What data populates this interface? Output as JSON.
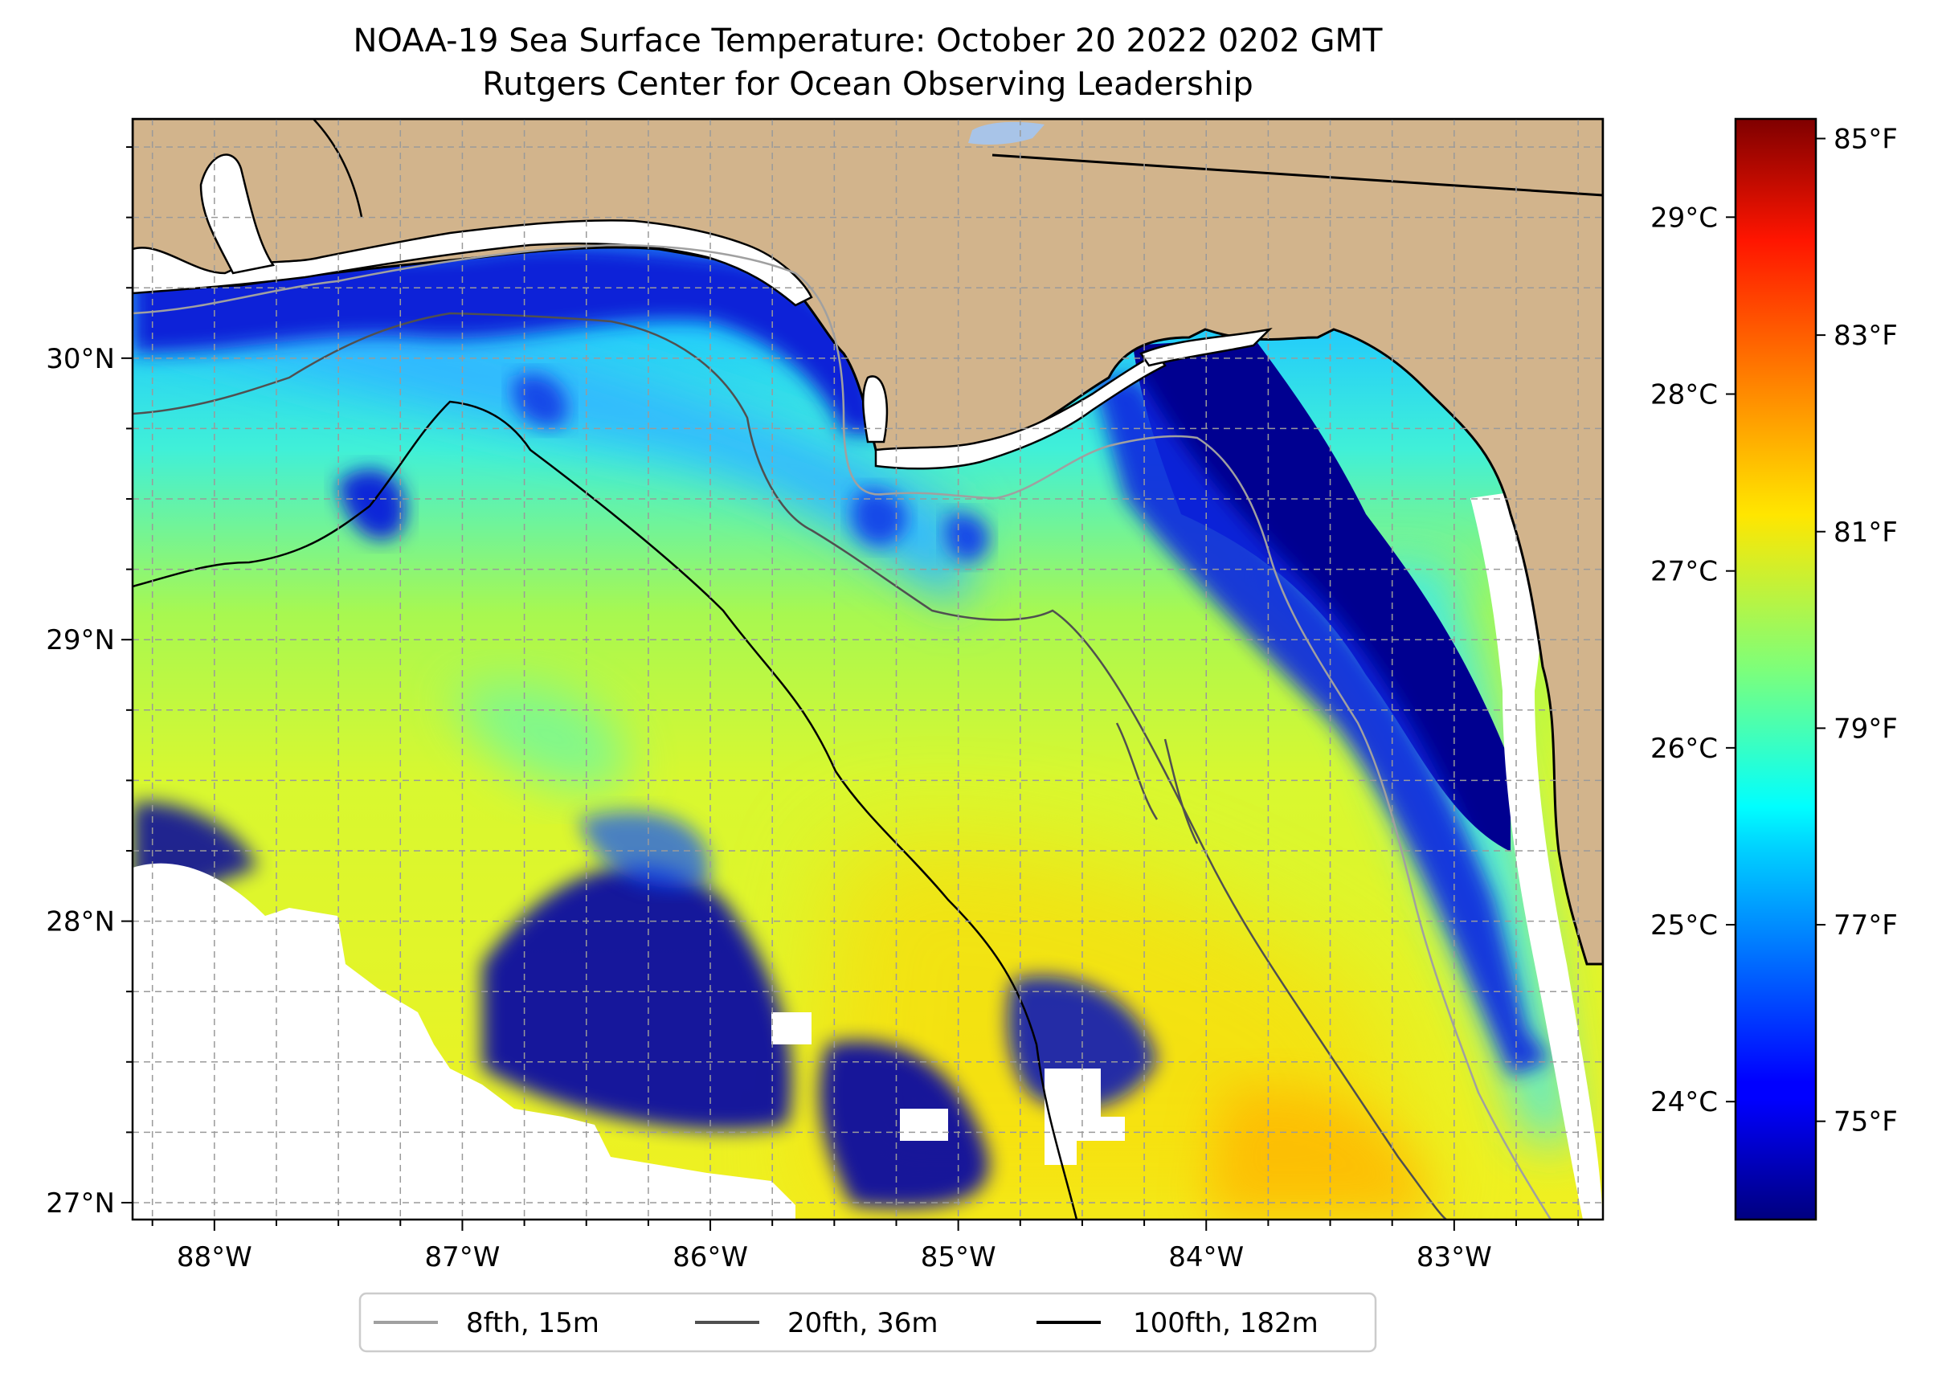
{
  "title": {
    "line1": "NOAA-19 Sea Surface Temperature: October 20 2022 0202 GMT",
    "line2": "Rutgers Center for Ocean Observing Leadership"
  },
  "map": {
    "lon_range": [
      -88.33,
      -82.4
    ],
    "lat_range": [
      26.94,
      30.85
    ],
    "lon_ticks": [
      {
        "value": -88,
        "label": "88°W"
      },
      {
        "value": -87,
        "label": "87°W"
      },
      {
        "value": -86,
        "label": "86°W"
      },
      {
        "value": -85,
        "label": "85°W"
      },
      {
        "value": -84,
        "label": "84°W"
      },
      {
        "value": -83,
        "label": "83°W"
      }
    ],
    "lat_ticks": [
      {
        "value": 27,
        "label": "27°N"
      },
      {
        "value": 28,
        "label": "28°N"
      },
      {
        "value": 29,
        "label": "29°N"
      },
      {
        "value": 30,
        "label": "30°N"
      }
    ],
    "grid": true,
    "land_color": "#d2b48c",
    "nodata_color": "#ffffff"
  },
  "colorbar": {
    "colormap": "jet",
    "range_f": [
      74.0,
      85.2
    ],
    "fahrenheit_ticks": [
      {
        "value": 75,
        "label": "75°F"
      },
      {
        "value": 77,
        "label": "77°F"
      },
      {
        "value": 79,
        "label": "79°F"
      },
      {
        "value": 81,
        "label": "81°F"
      },
      {
        "value": 83,
        "label": "83°F"
      },
      {
        "value": 85,
        "label": "85°F"
      }
    ],
    "celsius_ticks": [
      {
        "value": 24,
        "label": "24°C"
      },
      {
        "value": 25,
        "label": "25°C"
      },
      {
        "value": 26,
        "label": "26°C"
      },
      {
        "value": 27,
        "label": "27°C"
      },
      {
        "value": 28,
        "label": "28°C"
      },
      {
        "value": 29,
        "label": "29°C"
      }
    ]
  },
  "legend": {
    "placement": "bottom-center",
    "items": [
      {
        "label": "8fth, 15m",
        "color": "#a0a0a0"
      },
      {
        "label": "20fth, 36m",
        "color": "#505050"
      },
      {
        "label": "100fth, 182m",
        "color": "#000000"
      }
    ]
  }
}
